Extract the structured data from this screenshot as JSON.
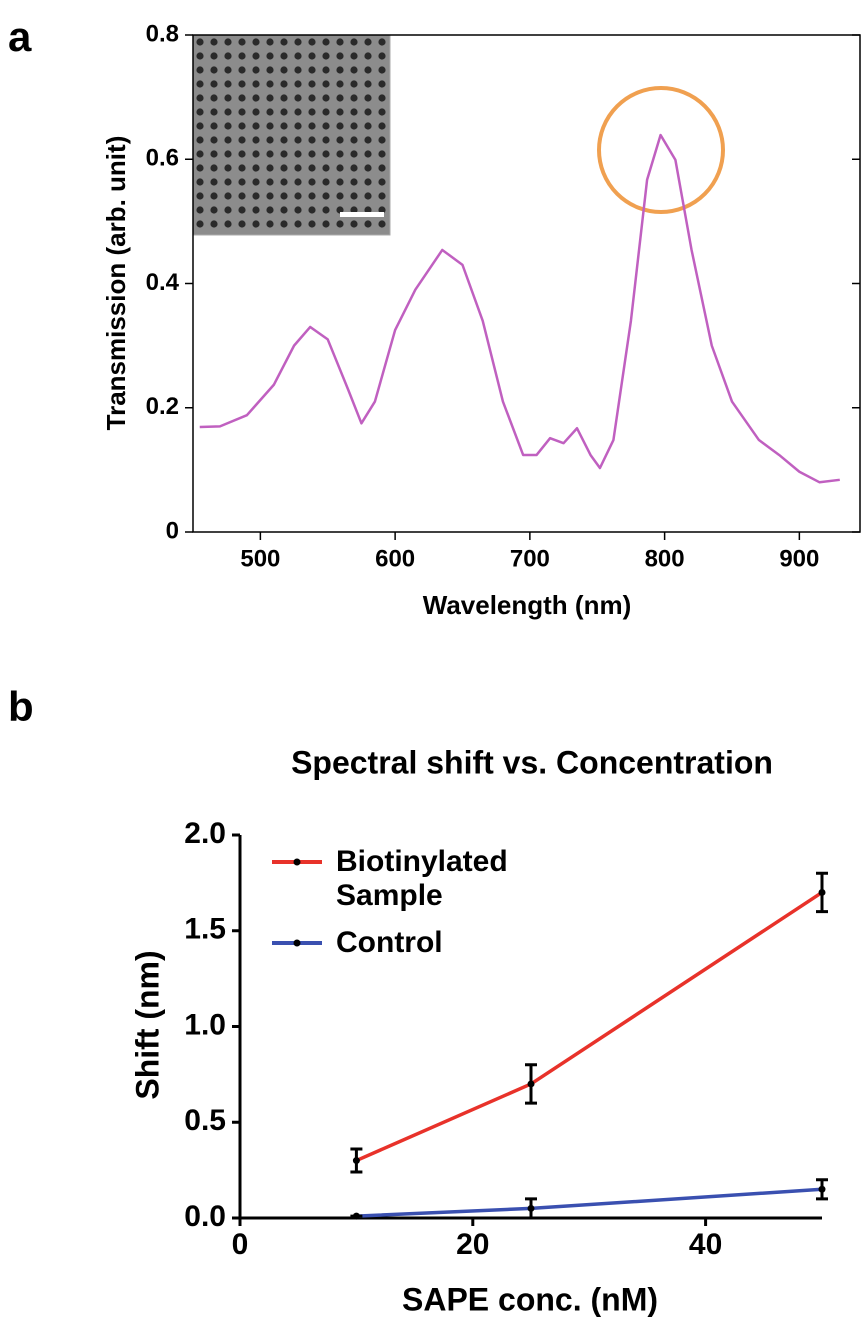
{
  "chart_data": [
    {
      "type": "line",
      "panel_label": "a",
      "xlabel": "Wavelength (nm)",
      "ylabel": "Transmission (arb. unit)",
      "x": [
        455,
        470,
        490,
        510,
        525,
        537,
        550,
        565,
        575,
        585,
        600,
        615,
        635,
        650,
        665,
        680,
        695,
        705,
        715,
        725,
        735,
        745,
        752,
        762,
        775,
        787,
        797,
        808,
        820,
        835,
        850,
        870,
        885,
        900,
        915,
        930
      ],
      "values": [
        0.169,
        0.17,
        0.188,
        0.237,
        0.3,
        0.33,
        0.31,
        0.23,
        0.175,
        0.21,
        0.325,
        0.39,
        0.454,
        0.43,
        0.34,
        0.21,
        0.124,
        0.124,
        0.151,
        0.143,
        0.167,
        0.124,
        0.103,
        0.148,
        0.34,
        0.567,
        0.639,
        0.599,
        0.454,
        0.3,
        0.21,
        0.148,
        0.124,
        0.097,
        0.08,
        0.084
      ],
      "color": "#c060c0",
      "xlim": [
        450,
        945
      ],
      "xticks": [
        500,
        600,
        700,
        800,
        900
      ],
      "ylim": [
        0,
        0.8
      ],
      "yticks": [
        0,
        0.2,
        0.4,
        0.6,
        0.8
      ]
    },
    {
      "type": "line",
      "panel_label": "b",
      "title": "Spectral shift vs. Concentration",
      "xlabel": "SAPE conc. (nM)",
      "ylabel": "Shift (nm)",
      "x": [
        10,
        25,
        50
      ],
      "series": [
        {
          "name": "Biotinylated Sample",
          "color": "#e8322a",
          "values": [
            0.3,
            0.7,
            1.7
          ],
          "errors": [
            0.06,
            0.1,
            0.1
          ]
        },
        {
          "name": "Control",
          "color": "#3a50b0",
          "values": [
            0.01,
            0.05,
            0.15
          ],
          "errors": [
            0,
            0.05,
            0.05
          ]
        }
      ],
      "xlim": [
        0,
        50
      ],
      "xticks": [
        0,
        20,
        40
      ],
      "ylim": [
        0,
        2
      ],
      "yticks": [
        {
          "value": 0,
          "label": "0.0"
        },
        {
          "value": 0.5,
          "label": "0.5"
        },
        {
          "value": 1,
          "label": "1.0"
        },
        {
          "value": 1.5,
          "label": "1.5"
        },
        {
          "value": 2,
          "label": "2.0"
        }
      ]
    }
  ]
}
